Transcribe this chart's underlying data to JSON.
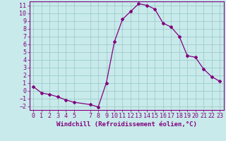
{
  "x": [
    0,
    1,
    2,
    3,
    4,
    5,
    7,
    8,
    9,
    10,
    11,
    12,
    13,
    14,
    15,
    16,
    17,
    18,
    19,
    20,
    21,
    22,
    23
  ],
  "y": [
    0.5,
    -0.3,
    -0.5,
    -0.8,
    -1.2,
    -1.5,
    -1.8,
    -2.1,
    1.0,
    6.3,
    9.2,
    10.2,
    11.2,
    11.0,
    10.5,
    8.7,
    8.2,
    7.0,
    4.5,
    4.3,
    2.8,
    1.8,
    1.2
  ],
  "line_color": "#800080",
  "bg_color": "#c8eaea",
  "grid_color": "#a0cccc",
  "xlabel": "Windchill (Refroidissement éolien,°C)",
  "xlim": [
    -0.5,
    23.5
  ],
  "ylim": [
    -2.5,
    11.5
  ],
  "xticks": [
    0,
    1,
    2,
    3,
    4,
    5,
    7,
    8,
    9,
    10,
    11,
    12,
    13,
    14,
    15,
    16,
    17,
    18,
    19,
    20,
    21,
    22,
    23
  ],
  "yticks": [
    -2,
    -1,
    0,
    1,
    2,
    3,
    4,
    5,
    6,
    7,
    8,
    9,
    10,
    11
  ],
  "tick_color": "#800080",
  "xlabel_color": "#800080",
  "xlabel_fontsize": 6.5,
  "tick_fontsize": 6,
  "marker": "D",
  "marker_size": 2.0,
  "line_width": 0.9
}
